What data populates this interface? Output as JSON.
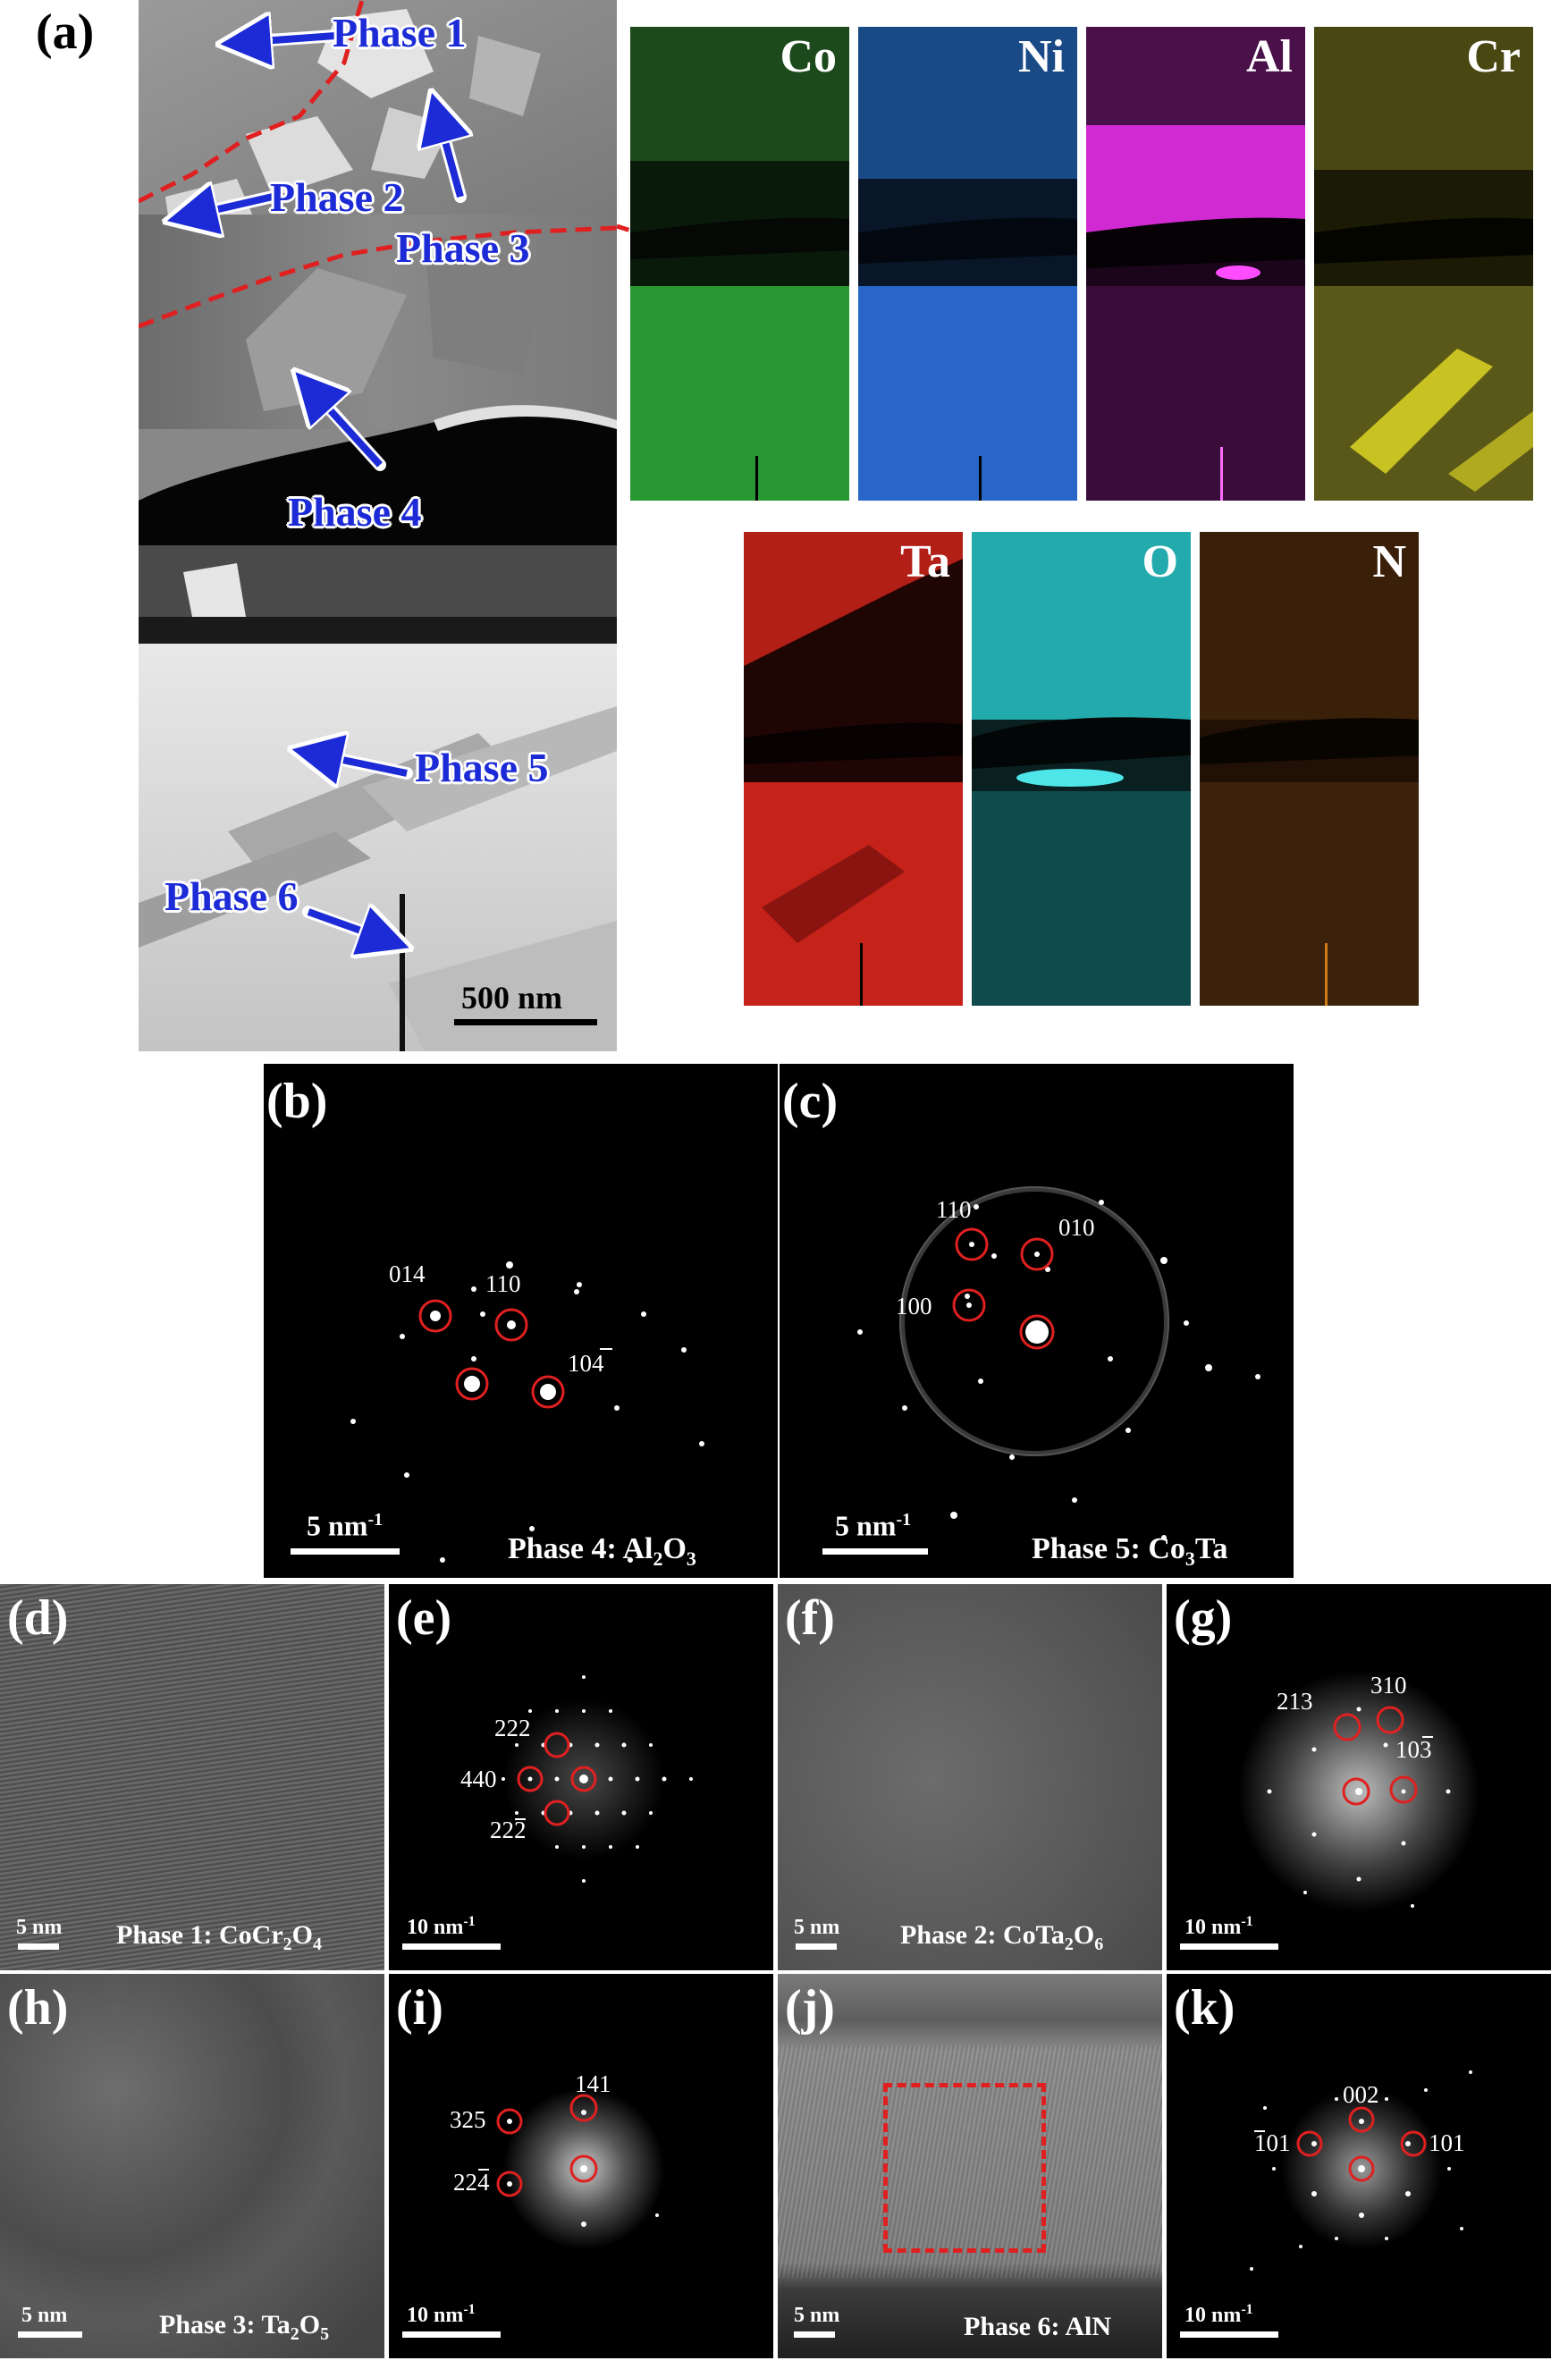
{
  "panel_a": {
    "label": "(a)",
    "phases": [
      "Phase 1",
      "Phase 2",
      "Phase 3",
      "Phase 4",
      "Phase 5",
      "Phase 6"
    ],
    "scale": "500 nm",
    "maps": [
      {
        "element": "Co",
        "color": "#2fae3a"
      },
      {
        "element": "Ni",
        "color": "#2c6fd8"
      },
      {
        "element": "Al",
        "color": "#d12ad2"
      },
      {
        "element": "Cr",
        "color": "#c9c223"
      },
      {
        "element": "Ta",
        "color": "#d7261c"
      },
      {
        "element": "O",
        "color": "#27c3c7"
      },
      {
        "element": "N",
        "color": "#d07a16"
      }
    ]
  },
  "panel_b": {
    "label": "(b)",
    "scale": "5 nm",
    "scale_unit_sup": "-1",
    "caption_pre": "Phase 4: Al",
    "caption_sub1": "2",
    "caption_mid": "O",
    "caption_sub2": "3",
    "indices": [
      "014",
      "110",
      "104"
    ]
  },
  "panel_c": {
    "label": "(c)",
    "scale": "5 nm",
    "scale_unit_sup": "-1",
    "caption_pre": "Phase 5: Co",
    "caption_sub1": "3",
    "caption_mid": "Ta",
    "indices": [
      "110",
      "010",
      "100"
    ]
  },
  "panel_d": {
    "label": "(d)",
    "scale": "5 nm",
    "caption_pre": "Phase 1: CoCr",
    "caption_sub1": "2",
    "caption_mid": "O",
    "caption_sub2": "4"
  },
  "panel_e": {
    "label": "(e)",
    "scale": "10 nm",
    "scale_unit_sup": "-1",
    "indices": [
      "222",
      "440",
      "222"
    ]
  },
  "panel_f": {
    "label": "(f)",
    "scale": "5 nm",
    "caption_pre": "Phase 2: CoTa",
    "caption_sub1": "2",
    "caption_mid": "O",
    "caption_sub2": "6"
  },
  "panel_g": {
    "label": "(g)",
    "scale": "10 nm",
    "scale_unit_sup": "-1",
    "indices": [
      "213",
      "310",
      "103"
    ]
  },
  "panel_h": {
    "label": "(h)",
    "scale": "5 nm",
    "caption_pre": "Phase 3: Ta",
    "caption_sub1": "2",
    "caption_mid": "O",
    "caption_sub2": "5"
  },
  "panel_i": {
    "label": "(i)",
    "scale": "10 nm",
    "scale_unit_sup": "-1",
    "indices": [
      "325",
      "141",
      "224"
    ]
  },
  "panel_j": {
    "label": "(j)",
    "scale": "5 nm",
    "caption": "Phase 6: AlN"
  },
  "panel_k": {
    "label": "(k)",
    "scale": "10 nm",
    "scale_unit_sup": "-1",
    "indices": [
      "101",
      "002",
      "101"
    ]
  }
}
